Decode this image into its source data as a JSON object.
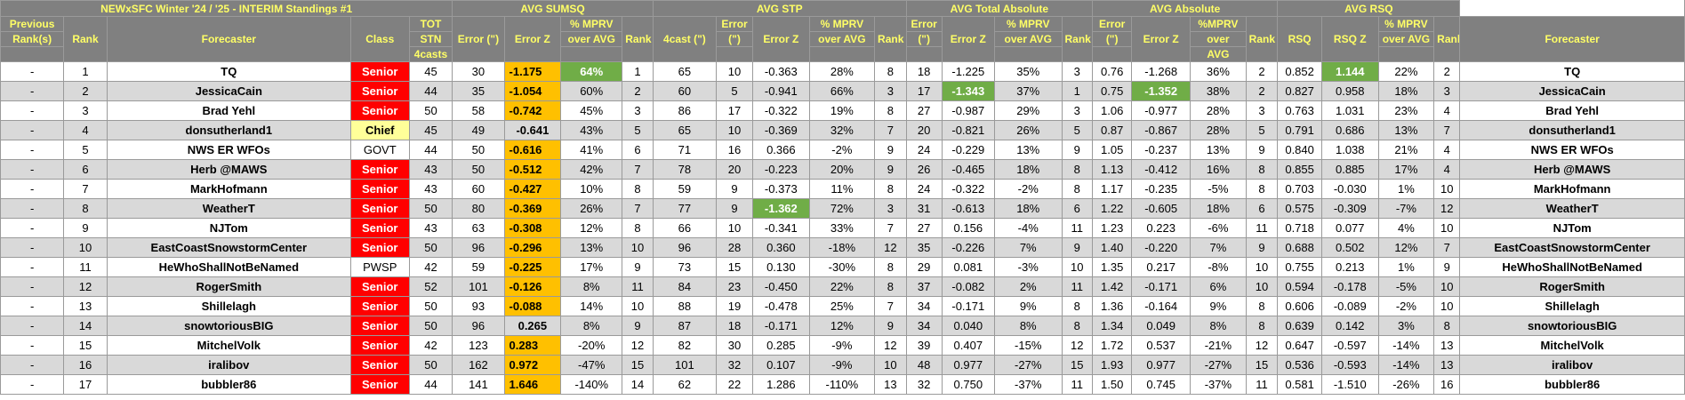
{
  "sheet": {
    "title": "NEWxSFC Winter '24 / '25 - INTERIM Standings #1",
    "groups": {
      "sumsq": "AVG SUMSQ",
      "stp": "AVG STP",
      "total_abs": "AVG Total Absolute",
      "abs": "AVG Absolute",
      "rsq": "AVG RSQ"
    },
    "headers": {
      "prev_rank": [
        "Previous",
        "Rank(s)"
      ],
      "rank": "Rank",
      "forecaster": "Forecaster",
      "class": "Class",
      "tot": [
        "TOT",
        "STN",
        "4casts"
      ],
      "sumsq": {
        "error": "Error (\")",
        "errz": "Error Z",
        "mprv": [
          "% MPRV",
          "over AVG"
        ],
        "rank": "Rank"
      },
      "stp": {
        "fcast": "4cast (\")",
        "error": [
          "Error",
          "(\")"
        ],
        "errz": "Error Z",
        "mprv": [
          "% MPRV",
          "over AVG"
        ],
        "rank": "Rank"
      },
      "total_abs": {
        "error": [
          "Error",
          "(\")"
        ],
        "errz": "Error Z",
        "mprv": [
          "% MPRV",
          "over AVG"
        ],
        "rank": "Rank"
      },
      "abs": {
        "error": [
          "Error",
          "(\")"
        ],
        "errz": "Error Z",
        "mprv": [
          "%MPRV",
          "over",
          "AVG"
        ],
        "rank": "Rank"
      },
      "rsq": {
        "rsq": "RSQ",
        "rsqz": "RSQ Z",
        "mprv": [
          "% MPRV",
          "over AVG"
        ],
        "rank": "Rank"
      },
      "forecaster2": "Forecaster"
    },
    "rows": [
      [
        "-",
        "1",
        "TQ",
        "Senior",
        "45",
        "30",
        "-1.175",
        "64%",
        "1",
        "65",
        "10",
        "-0.363",
        "28%",
        "8",
        "18",
        "-1.225",
        "35%",
        "3",
        "0.76",
        "-1.268",
        "36%",
        "2",
        "0.852",
        "1.144",
        "22%",
        "2",
        "TQ"
      ],
      [
        "-",
        "2",
        "JessicaCain",
        "Senior",
        "44",
        "35",
        "-1.054",
        "60%",
        "2",
        "60",
        "5",
        "-0.941",
        "66%",
        "3",
        "17",
        "-1.343",
        "37%",
        "1",
        "0.75",
        "-1.352",
        "38%",
        "2",
        "0.827",
        "0.958",
        "18%",
        "3",
        "JessicaCain"
      ],
      [
        "-",
        "3",
        "Brad Yehl",
        "Senior",
        "50",
        "58",
        "-0.742",
        "45%",
        "3",
        "86",
        "17",
        "-0.322",
        "19%",
        "8",
        "27",
        "-0.987",
        "29%",
        "3",
        "1.06",
        "-0.977",
        "28%",
        "3",
        "0.763",
        "1.031",
        "23%",
        "4",
        "Brad Yehl"
      ],
      [
        "-",
        "4",
        "donsutherland1",
        "Chief",
        "45",
        "49",
        "-0.641",
        "43%",
        "5",
        "65",
        "10",
        "-0.369",
        "32%",
        "7",
        "20",
        "-0.821",
        "26%",
        "5",
        "0.87",
        "-0.867",
        "28%",
        "5",
        "0.791",
        "0.686",
        "13%",
        "7",
        "donsutherland1"
      ],
      [
        "-",
        "5",
        "NWS ER WFOs",
        "GOVT",
        "44",
        "50",
        "-0.616",
        "41%",
        "6",
        "71",
        "16",
        "0.366",
        "-2%",
        "9",
        "24",
        "-0.229",
        "13%",
        "9",
        "1.05",
        "-0.237",
        "13%",
        "9",
        "0.840",
        "1.038",
        "21%",
        "4",
        "NWS ER WFOs"
      ],
      [
        "-",
        "6",
        "Herb @MAWS",
        "Senior",
        "43",
        "50",
        "-0.512",
        "42%",
        "7",
        "78",
        "20",
        "-0.223",
        "20%",
        "9",
        "26",
        "-0.465",
        "18%",
        "8",
        "1.13",
        "-0.412",
        "16%",
        "8",
        "0.855",
        "0.885",
        "17%",
        "4",
        "Herb @MAWS"
      ],
      [
        "-",
        "7",
        "MarkHofmann",
        "Senior",
        "43",
        "60",
        "-0.427",
        "10%",
        "8",
        "59",
        "9",
        "-0.373",
        "11%",
        "8",
        "24",
        "-0.322",
        "-2%",
        "8",
        "1.17",
        "-0.235",
        "-5%",
        "8",
        "0.703",
        "-0.030",
        "1%",
        "10",
        "MarkHofmann"
      ],
      [
        "-",
        "8",
        "WeatherT",
        "Senior",
        "50",
        "80",
        "-0.369",
        "26%",
        "7",
        "77",
        "9",
        "-1.362",
        "72%",
        "3",
        "31",
        "-0.613",
        "18%",
        "6",
        "1.22",
        "-0.605",
        "18%",
        "6",
        "0.575",
        "-0.309",
        "-7%",
        "12",
        "WeatherT"
      ],
      [
        "-",
        "9",
        "NJTom",
        "Senior",
        "43",
        "63",
        "-0.308",
        "12%",
        "8",
        "66",
        "10",
        "-0.341",
        "33%",
        "7",
        "27",
        "0.156",
        "-4%",
        "11",
        "1.23",
        "0.223",
        "-6%",
        "11",
        "0.718",
        "0.077",
        "4%",
        "10",
        "NJTom"
      ],
      [
        "-",
        "10",
        "EastCoastSnowstormCenter",
        "Senior",
        "50",
        "96",
        "-0.296",
        "13%",
        "10",
        "96",
        "28",
        "0.360",
        "-18%",
        "12",
        "35",
        "-0.226",
        "7%",
        "9",
        "1.40",
        "-0.220",
        "7%",
        "9",
        "0.688",
        "0.502",
        "12%",
        "7",
        "EastCoastSnowstormCenter"
      ],
      [
        "-",
        "11",
        "HeWhoShallNotBeNamed",
        "PWSP",
        "42",
        "59",
        "-0.225",
        "17%",
        "9",
        "73",
        "15",
        "0.130",
        "-30%",
        "8",
        "29",
        "0.081",
        "-3%",
        "10",
        "1.35",
        "0.217",
        "-8%",
        "10",
        "0.755",
        "0.213",
        "1%",
        "9",
        "HeWhoShallNotBeNamed"
      ],
      [
        "-",
        "12",
        "RogerSmith",
        "Senior",
        "52",
        "101",
        "-0.126",
        "8%",
        "11",
        "84",
        "23",
        "-0.450",
        "22%",
        "8",
        "37",
        "-0.082",
        "2%",
        "11",
        "1.42",
        "-0.171",
        "6%",
        "10",
        "0.594",
        "-0.178",
        "-5%",
        "10",
        "RogerSmith"
      ],
      [
        "-",
        "13",
        "Shillelagh",
        "Senior",
        "50",
        "93",
        "-0.088",
        "14%",
        "10",
        "88",
        "19",
        "-0.478",
        "25%",
        "7",
        "34",
        "-0.171",
        "9%",
        "8",
        "1.36",
        "-0.164",
        "9%",
        "8",
        "0.606",
        "-0.089",
        "-2%",
        "10",
        "Shillelagh"
      ],
      [
        "-",
        "14",
        "snowtoriousBIG",
        "Senior",
        "50",
        "96",
        "0.265",
        "8%",
        "9",
        "87",
        "18",
        "-0.171",
        "12%",
        "9",
        "34",
        "0.040",
        "8%",
        "8",
        "1.34",
        "0.049",
        "8%",
        "8",
        "0.639",
        "0.142",
        "3%",
        "8",
        "snowtoriousBIG"
      ],
      [
        "-",
        "15",
        "MitchelVolk",
        "Senior",
        "42",
        "123",
        "0.283",
        "-20%",
        "12",
        "82",
        "30",
        "0.285",
        "-9%",
        "12",
        "39",
        "0.407",
        "-15%",
        "12",
        "1.72",
        "0.537",
        "-21%",
        "12",
        "0.647",
        "-0.597",
        "-14%",
        "13",
        "MitchelVolk"
      ],
      [
        "-",
        "16",
        "iralibov",
        "Senior",
        "50",
        "162",
        "0.972",
        "-47%",
        "15",
        "101",
        "32",
        "0.107",
        "-9%",
        "10",
        "48",
        "0.977",
        "-27%",
        "15",
        "1.93",
        "0.977",
        "-27%",
        "15",
        "0.536",
        "-0.593",
        "-14%",
        "13",
        "iralibov"
      ],
      [
        "-",
        "17",
        "bubbler86",
        "Senior",
        "44",
        "141",
        "1.646",
        "-140%",
        "14",
        "62",
        "22",
        "1.286",
        "-110%",
        "13",
        "32",
        "0.750",
        "-37%",
        "11",
        "1.50",
        "0.745",
        "-37%",
        "11",
        "0.581",
        "-1.510",
        "-26%",
        "16",
        "bubbler86"
      ]
    ],
    "highlights": {
      "orange": [
        [
          0,
          6
        ],
        [
          1,
          6
        ],
        [
          2,
          6
        ],
        [
          4,
          6
        ],
        [
          5,
          6
        ],
        [
          6,
          6
        ],
        [
          7,
          6
        ],
        [
          8,
          6
        ],
        [
          9,
          6
        ],
        [
          10,
          6
        ],
        [
          11,
          6
        ],
        [
          12,
          6
        ],
        [
          14,
          6
        ],
        [
          15,
          6
        ],
        [
          16,
          6
        ]
      ],
      "green": [
        [
          0,
          7
        ],
        [
          0,
          23
        ],
        [
          1,
          15
        ],
        [
          1,
          19
        ],
        [
          7,
          11
        ]
      ]
    },
    "colors": {
      "header_bg": "#808080",
      "header_text": "#ffff66",
      "senior": "#ff0000",
      "chief": "#ffff99",
      "orange": "#ffc000",
      "green": "#70ad47",
      "stripe": "#d9d9d9"
    }
  }
}
